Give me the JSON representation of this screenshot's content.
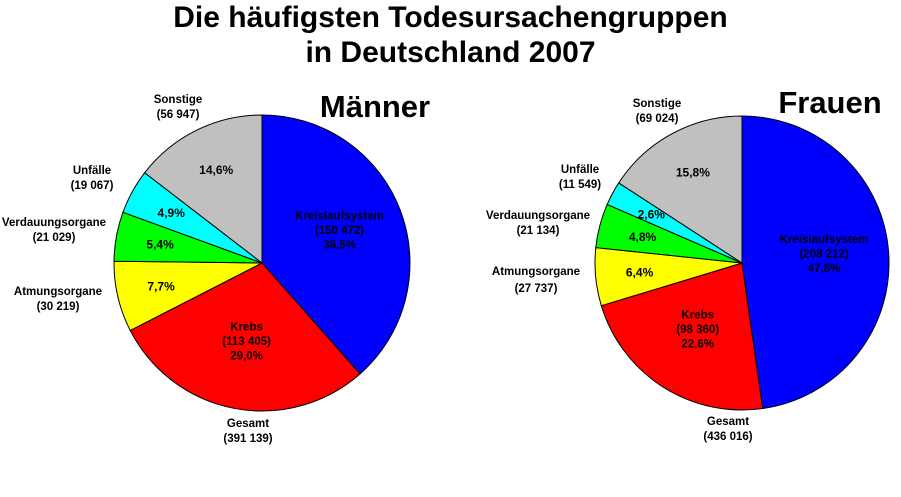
{
  "title_line1": "Die häufigsten Todesursachengruppen",
  "title_line2": "in Deutschland 2007",
  "colors": {
    "Kreislaufsystem": "#0000ff",
    "Krebs": "#ff0000",
    "Atmungsorgane": "#ffff00",
    "Verdauungsorgane": "#00ff00",
    "Unfälle": "#00ffff",
    "Sonstige": "#c0c0c0"
  },
  "chart_data": [
    {
      "type": "pie",
      "title": "Männer",
      "total_label": "Gesamt",
      "total_value": "(391 139)",
      "slices": [
        {
          "name": "Kreislaufsystem",
          "value": 150472,
          "value_label": "(150 472)",
          "percent": "38,5%"
        },
        {
          "name": "Krebs",
          "value": 113405,
          "value_label": "(113 405)",
          "percent": "29,0%"
        },
        {
          "name": "Atmungsorgane",
          "value": 30219,
          "value_label": "(30 219)",
          "percent": "7,7%"
        },
        {
          "name": "Verdauungsorgane",
          "value": 21029,
          "value_label": "(21 029)",
          "percent": "5,4%"
        },
        {
          "name": "Unfälle",
          "value": 19067,
          "value_label": "(19 067)",
          "percent": "4,9%"
        },
        {
          "name": "Sonstige",
          "value": 56947,
          "value_label": "(56 947)",
          "percent": "14,6%"
        }
      ]
    },
    {
      "type": "pie",
      "title": "Frauen",
      "total_label": "Gesamt",
      "total_value": "(436 016)",
      "slices": [
        {
          "name": "Kreislaufsystem",
          "value": 208212,
          "value_label": "(208 212)",
          "percent": "47,8%"
        },
        {
          "name": "Krebs",
          "value": 98360,
          "value_label": "(98 360)",
          "percent": "22,6%"
        },
        {
          "name": "Atmungsorgane",
          "value": 27737,
          "value_label": "(27 737)",
          "percent": "6,4%"
        },
        {
          "name": "Verdauungsorgane",
          "value": 21134,
          "value_label": "(21 134)",
          "percent": "4,8%"
        },
        {
          "name": "Unfälle",
          "value": 11549,
          "value_label": "(11 549)",
          "percent": "2,6%"
        },
        {
          "name": "Sonstige",
          "value": 69024,
          "value_label": "(69 024)",
          "percent": "15,8%"
        }
      ]
    }
  ]
}
